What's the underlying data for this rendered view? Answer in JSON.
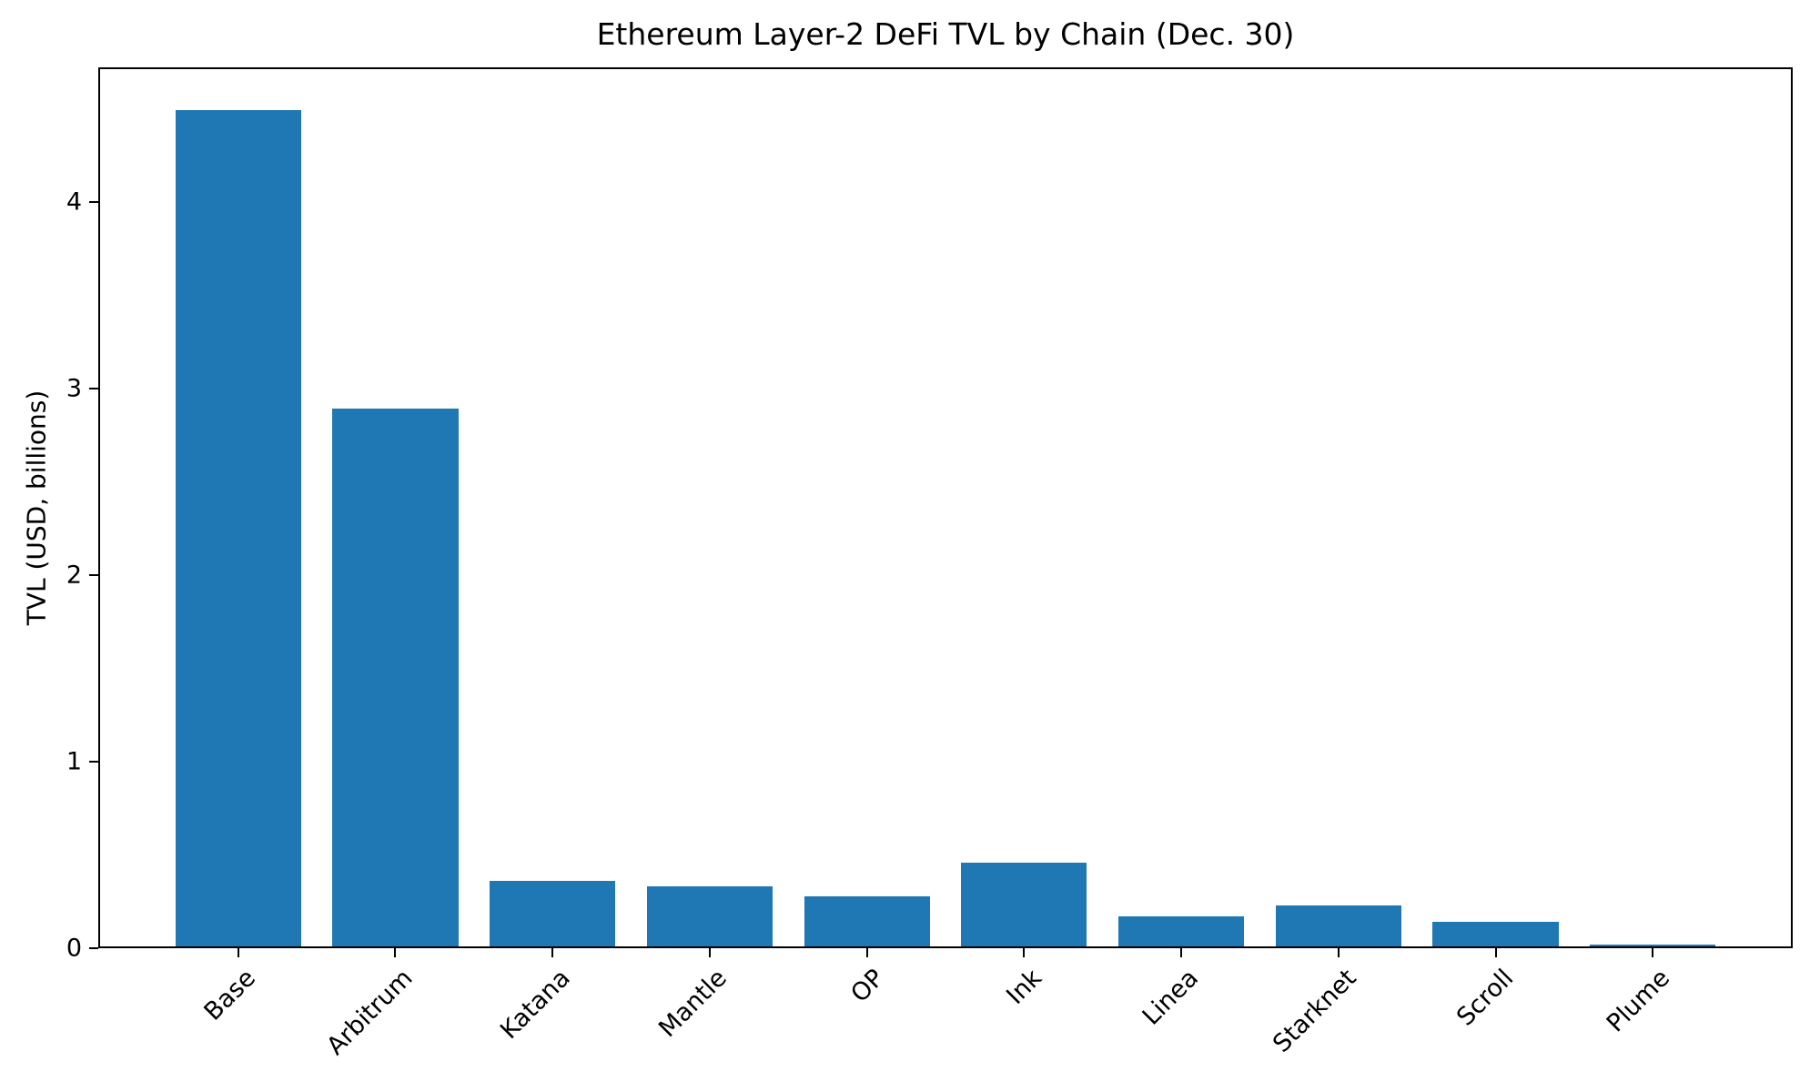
{
  "chart_data": {
    "type": "bar",
    "title": "Ethereum Layer-2 DeFi TVL by Chain (Dec. 30)",
    "xlabel": "",
    "ylabel": "TVL (USD, billions)",
    "categories": [
      "Base",
      "Arbitrum",
      "Katana",
      "Mantle",
      "OP",
      "Ink",
      "Linea",
      "Starknet",
      "Scroll",
      "Plume"
    ],
    "values": [
      4.49,
      2.89,
      0.36,
      0.33,
      0.28,
      0.46,
      0.17,
      0.23,
      0.14,
      0.02
    ],
    "yticks": [
      0,
      1,
      2,
      3,
      4
    ],
    "ylim": [
      0,
      4.72
    ],
    "x_axis_pad_units": 0.89,
    "bar_width_units": 0.8,
    "bar_color": "#1f77b4",
    "x_tick_rotation_deg": 45,
    "grid": false,
    "legend_position": "none",
    "background_color": "#ffffff",
    "text_color": "#000000"
  }
}
